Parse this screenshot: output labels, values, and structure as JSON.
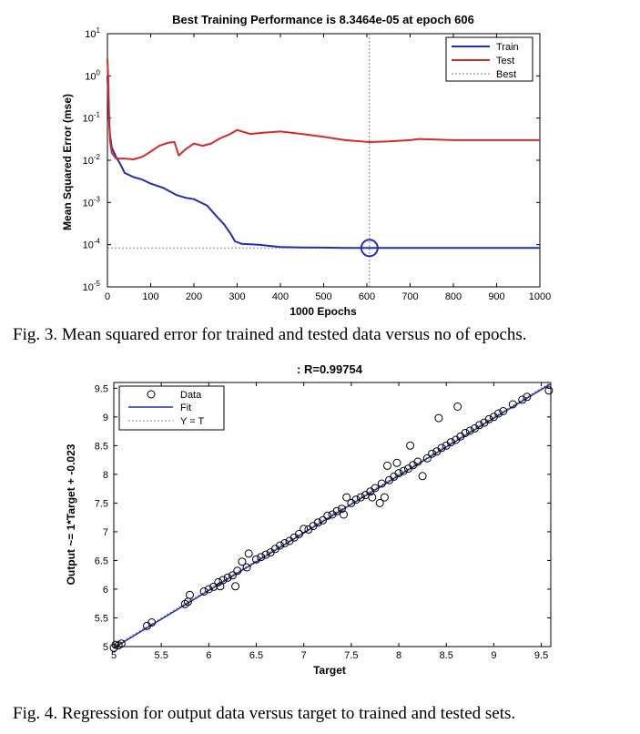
{
  "chart_data": [
    {
      "type": "line",
      "title": "Best Training Performance is 8.3464e-05 at epoch 606",
      "xlabel": "1000 Epochs",
      "ylabel": "Mean Squared Error  (mse)",
      "xlim": [
        0,
        1000
      ],
      "ylim": [
        1e-05,
        10
      ],
      "yscale": "log",
      "grid": false,
      "legend_position": "top-right",
      "x_ticks": [
        "0",
        "100",
        "200",
        "300",
        "400",
        "500",
        "600",
        "700",
        "800",
        "900",
        "1000"
      ],
      "y_ticks": [
        {
          "base": "10",
          "exp": "1"
        },
        {
          "base": "10",
          "exp": "0"
        },
        {
          "base": "10",
          "exp": "-1"
        },
        {
          "base": "10",
          "exp": "-2"
        },
        {
          "base": "10",
          "exp": "-3"
        },
        {
          "base": "10",
          "exp": "-4"
        },
        {
          "base": "10",
          "exp": "-5"
        }
      ],
      "series": [
        {
          "name": "Train",
          "color": "#1f2fb0",
          "style": "solid",
          "x": [
            0,
            2,
            4,
            6,
            10,
            20,
            30,
            40,
            60,
            80,
            100,
            130,
            160,
            180,
            200,
            230,
            250,
            270,
            285,
            295,
            310,
            350,
            400,
            450,
            500,
            550,
            606,
            650,
            700,
            800,
            900,
            1000
          ],
          "y": [
            1.0,
            0.3,
            0.08,
            0.04,
            0.02,
            0.012,
            0.008,
            0.005,
            0.004,
            0.0035,
            0.0028,
            0.0022,
            0.0015,
            0.0013,
            0.0012,
            0.00085,
            0.0005,
            0.0003,
            0.00018,
            0.00012,
            0.000105,
            0.0001,
            8.8e-05,
            8.6e-05,
            8.5e-05,
            8.4e-05,
            8.3464e-05,
            8.35e-05,
            8.35e-05,
            8.35e-05,
            8.35e-05,
            8.35e-05
          ]
        },
        {
          "name": "Test",
          "color": "#d42a2a",
          "style": "solid",
          "x": [
            0,
            2,
            4,
            6,
            10,
            20,
            40,
            60,
            80,
            100,
            120,
            140,
            155,
            165,
            180,
            200,
            220,
            240,
            260,
            280,
            300,
            330,
            360,
            400,
            450,
            500,
            550,
            606,
            650,
            700,
            720,
            800,
            900,
            1000
          ],
          "y": [
            2.5,
            0.8,
            0.1,
            0.03,
            0.015,
            0.011,
            0.011,
            0.0105,
            0.012,
            0.016,
            0.022,
            0.026,
            0.027,
            0.013,
            0.018,
            0.025,
            0.022,
            0.025,
            0.033,
            0.04,
            0.052,
            0.042,
            0.045,
            0.048,
            0.042,
            0.036,
            0.03,
            0.027,
            0.028,
            0.03,
            0.032,
            0.03,
            0.03,
            0.03
          ]
        }
      ],
      "legend": [
        "Train",
        "Test",
        "Best"
      ],
      "best": {
        "epoch": 606,
        "mse": 8.3464e-05,
        "label": "Best",
        "color": "#808080"
      },
      "best_marker_color": "#1f2fb0"
    },
    {
      "type": "scatter",
      "title": ": R=0.99754",
      "xlabel": "Target",
      "ylabel": "Output ~= 1*Target + -0.023",
      "xlim": [
        5,
        9.6
      ],
      "ylim": [
        5,
        9.6
      ],
      "grid": false,
      "legend_position": "top-left",
      "x_ticks": [
        "5",
        "5.5",
        "6",
        "6.5",
        "7",
        "7.5",
        "8",
        "8.5",
        "9",
        "9.5"
      ],
      "y_ticks": [
        "5",
        "5.5",
        "6",
        "6.5",
        "7",
        "7.5",
        "8",
        "8.5",
        "9",
        "9.5"
      ],
      "legend": [
        "Data",
        "Fit",
        "Y = T"
      ],
      "fit": {
        "slope": 1,
        "intercept": -0.023,
        "color": "#1f2fb0"
      },
      "identity_color": "#808080",
      "points": [
        [
          5.0,
          4.98
        ],
        [
          5.02,
          5.03
        ],
        [
          5.05,
          5.02
        ],
        [
          5.08,
          5.05
        ],
        [
          5.35,
          5.36
        ],
        [
          5.4,
          5.42
        ],
        [
          5.75,
          5.74
        ],
        [
          5.78,
          5.78
        ],
        [
          5.8,
          5.9
        ],
        [
          5.95,
          5.96
        ],
        [
          6.0,
          6.0
        ],
        [
          6.05,
          6.04
        ],
        [
          6.1,
          6.12
        ],
        [
          6.12,
          6.05
        ],
        [
          6.15,
          6.16
        ],
        [
          6.2,
          6.2
        ],
        [
          6.25,
          6.24
        ],
        [
          6.28,
          6.05
        ],
        [
          6.3,
          6.32
        ],
        [
          6.35,
          6.48
        ],
        [
          6.4,
          6.38
        ],
        [
          6.42,
          6.62
        ],
        [
          6.5,
          6.52
        ],
        [
          6.55,
          6.56
        ],
        [
          6.6,
          6.6
        ],
        [
          6.65,
          6.64
        ],
        [
          6.7,
          6.7
        ],
        [
          6.75,
          6.76
        ],
        [
          6.8,
          6.8
        ],
        [
          6.85,
          6.84
        ],
        [
          6.9,
          6.9
        ],
        [
          6.95,
          6.96
        ],
        [
          7.0,
          7.05
        ],
        [
          7.05,
          7.04
        ],
        [
          7.1,
          7.1
        ],
        [
          7.15,
          7.16
        ],
        [
          7.2,
          7.2
        ],
        [
          7.25,
          7.28
        ],
        [
          7.3,
          7.3
        ],
        [
          7.35,
          7.36
        ],
        [
          7.4,
          7.4
        ],
        [
          7.42,
          7.3
        ],
        [
          7.45,
          7.6
        ],
        [
          7.5,
          7.5
        ],
        [
          7.55,
          7.56
        ],
        [
          7.6,
          7.6
        ],
        [
          7.65,
          7.64
        ],
        [
          7.7,
          7.7
        ],
        [
          7.72,
          7.6
        ],
        [
          7.75,
          7.76
        ],
        [
          7.8,
          7.5
        ],
        [
          7.82,
          7.84
        ],
        [
          7.85,
          7.6
        ],
        [
          7.88,
          8.15
        ],
        [
          7.9,
          7.9
        ],
        [
          7.95,
          7.96
        ],
        [
          7.98,
          8.2
        ],
        [
          8.0,
          8.02
        ],
        [
          8.05,
          8.06
        ],
        [
          8.1,
          8.1
        ],
        [
          8.12,
          8.5
        ],
        [
          8.15,
          8.16
        ],
        [
          8.2,
          8.22
        ],
        [
          8.25,
          7.97
        ],
        [
          8.3,
          8.28
        ],
        [
          8.35,
          8.36
        ],
        [
          8.4,
          8.4
        ],
        [
          8.42,
          8.98
        ],
        [
          8.45,
          8.46
        ],
        [
          8.5,
          8.5
        ],
        [
          8.55,
          8.56
        ],
        [
          8.6,
          8.6
        ],
        [
          8.62,
          9.18
        ],
        [
          8.65,
          8.66
        ],
        [
          8.7,
          8.72
        ],
        [
          8.75,
          8.76
        ],
        [
          8.8,
          8.8
        ],
        [
          8.85,
          8.86
        ],
        [
          8.9,
          8.9
        ],
        [
          8.95,
          8.96
        ],
        [
          9.0,
          9.0
        ],
        [
          9.05,
          9.06
        ],
        [
          9.1,
          9.1
        ],
        [
          9.2,
          9.22
        ],
        [
          9.3,
          9.3
        ],
        [
          9.35,
          9.35
        ],
        [
          9.58,
          9.46
        ]
      ]
    }
  ],
  "captions": {
    "fig3": "Fig. 3.  Mean squared error for trained and tested data versus no of epochs.",
    "fig4": "Fig. 4.  Regression for output data versus target to trained and tested sets."
  }
}
